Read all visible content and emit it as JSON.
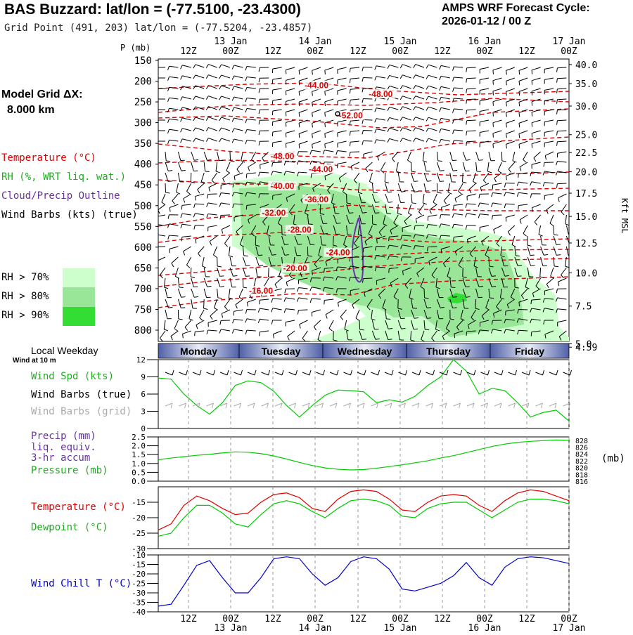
{
  "header": {
    "title": "BAS Buzzard:  lat/lon = (-77.5100, -23.4300)",
    "subtitle": "Grid Point (491, 203) lat/lon = (-77.5204, -23.4857)",
    "cycle_line1": "AMPS WRF Forecast Cycle:",
    "cycle_line2": "2026-01-12 / 00  Z"
  },
  "legend": {
    "grid_label": "Model Grid ΔX:",
    "grid_value": "8.000 km",
    "temperature": "Temperature (°C)",
    "rh": "RH (%, WRT liq. wat.)",
    "cloud": "Cloud/Precip Outline",
    "wind_barbs": "Wind Barbs (kts) (true)",
    "rh70": "RH > 70%",
    "rh80": "RH > 80%",
    "rh90": "RH > 90%",
    "local_weekday": "Local Weekday",
    "wind_10m": "Wind at 10 m",
    "wind_spd": "Wind Spd (kts)",
    "wind_barbs_true": "Wind Barbs (true)",
    "wind_barbs_grid": "Wind Barbs (grid)",
    "precip1": "Precip (mm)",
    "precip2": "liq. equiv.",
    "precip3": "3-hr accum",
    "pressure": "Pressure (mb)",
    "temp2": "Temperature (°C)",
    "dewpoint": "Dewpoint (°C)",
    "windchill": "Wind Chill T (°C)",
    "p_axis": "P (mb)",
    "kft": "Kft MSL",
    "mb_unit": "(mb)"
  },
  "colors": {
    "temp": "#e00000",
    "rh70": "#ccffcc",
    "rh80": "#99e699",
    "rh90": "#33dd33",
    "cloud": "#6633aa",
    "wind": "#00cc00",
    "grid_barb": "#aaaaaa",
    "windchill": "#0000cc",
    "daybar": "#5060a8"
  },
  "time_axis": {
    "hours": [
      "12Z",
      "00Z",
      "12Z",
      "00Z",
      "12Z",
      "00Z",
      "12Z",
      "00Z",
      "12Z",
      "00Z"
    ],
    "dates": [
      "13 Jan",
      "14 Jan",
      "15 Jan",
      "16 Jan",
      "17 Jan"
    ],
    "weekdays": [
      "Monday",
      "Tuesday",
      "Wednesday",
      "Thursday",
      "Friday"
    ]
  },
  "chart_data": [
    {
      "type": "time-height",
      "name": "upper-air cross section",
      "ylabel": "P (mb)",
      "y2label": "Kft MSL",
      "pressure_ticks": [
        "150",
        "200",
        "250",
        "300",
        "350",
        "400",
        "450",
        "500",
        "550",
        "600",
        "650",
        "700",
        "750",
        "800"
      ],
      "kft_ticks": [
        {
          "p": 160,
          "label": "40.0"
        },
        {
          "p": 206,
          "label": "35.0"
        },
        {
          "p": 260,
          "label": "30.0"
        },
        {
          "p": 329,
          "label": "25.0"
        },
        {
          "p": 372,
          "label": "22.5"
        },
        {
          "p": 418,
          "label": "20.0"
        },
        {
          "p": 470,
          "label": "17.5"
        },
        {
          "p": 526,
          "label": "15.0"
        },
        {
          "p": 590,
          "label": "12.5"
        },
        {
          "p": 662,
          "label": "10.0"
        },
        {
          "p": 742,
          "label": "7.5"
        },
        {
          "p": 833,
          "label": "5.0"
        },
        {
          "p": 841,
          "label": "4.59"
        }
      ],
      "temp_labels": [
        {
          "t": 37,
          "p": 217,
          "label": "-44.00"
        },
        {
          "t": 52,
          "p": 238,
          "label": "-48.00"
        },
        {
          "t": 45,
          "p": 290,
          "label": "-52.00"
        },
        {
          "t": 29,
          "p": 388,
          "label": "-48.00"
        },
        {
          "t": 38,
          "p": 419,
          "label": "-44.00"
        },
        {
          "t": 29,
          "p": 460,
          "label": "-40.00"
        },
        {
          "t": 37,
          "p": 492,
          "label": "-36.00"
        },
        {
          "t": 27,
          "p": 524,
          "label": "-32.00"
        },
        {
          "t": 33,
          "p": 565,
          "label": "-28.00"
        },
        {
          "t": 42,
          "p": 620,
          "label": "-24.00"
        },
        {
          "t": 32,
          "p": 658,
          "label": "-20.00"
        },
        {
          "t": 24,
          "p": 712,
          "label": "-16.00"
        }
      ]
    },
    {
      "type": "line",
      "name": "wind speed 10 m",
      "ylabel": "Wind Spd (kts)",
      "ylim": [
        0,
        12
      ],
      "yticks": [
        "0",
        "3",
        "6",
        "9",
        "12"
      ],
      "x": [
        0,
        3,
        6,
        9,
        12,
        15,
        18,
        21,
        24,
        27,
        30,
        33,
        36,
        39,
        42,
        45,
        48,
        51,
        54,
        57,
        60,
        63,
        66,
        69,
        72,
        75,
        78,
        81,
        84,
        87,
        90,
        93,
        96
      ],
      "values": [
        8.8,
        8.6,
        6,
        4,
        2.5,
        4.5,
        7.5,
        8.3,
        8,
        6.5,
        4,
        2,
        4,
        5.8,
        6.7,
        6.6,
        6.4,
        4.5,
        5,
        4.6,
        5.6,
        7.5,
        9,
        12,
        10,
        6,
        7,
        6.6,
        4.5,
        2,
        2.8,
        3.2,
        1.3
      ]
    },
    {
      "type": "line",
      "name": "pressure",
      "ylabel": "Pressure (mb)",
      "ylim": [
        816,
        829
      ],
      "yticks": [
        "816",
        "818",
        "820",
        "822",
        "824",
        "826",
        "828"
      ],
      "x": [
        0,
        3,
        6,
        9,
        12,
        15,
        18,
        21,
        24,
        27,
        30,
        33,
        36,
        39,
        42,
        45,
        48,
        51,
        54,
        57,
        60,
        63,
        66,
        69,
        72,
        75,
        78,
        81,
        84,
        87,
        90,
        93,
        96
      ],
      "values": [
        822.3,
        822.8,
        823.2,
        823.6,
        823.9,
        824.3,
        824.6,
        824.5,
        824.1,
        823.4,
        822.5,
        821.5,
        820.6,
        819.9,
        819.5,
        819.3,
        819.4,
        819.8,
        820.3,
        820.8,
        821.4,
        822,
        822.8,
        823.5,
        824.4,
        825.3,
        826.2,
        826.9,
        827.4,
        827.7,
        827.9,
        828.1,
        828
      ],
      "precip_ylabel": "Precip (mm)",
      "precip_ylim": [
        0,
        2.5
      ],
      "precip_yticks": [
        "0.0",
        "0.5",
        "1.0",
        "1.5",
        "2.0",
        "2.5"
      ],
      "precip_values": []
    },
    {
      "type": "line",
      "name": "temperature and dewpoint",
      "ylabel": "Temperature (°C)",
      "ylim": [
        -30,
        -10
      ],
      "yticks": [
        "-30",
        "-25",
        "-20",
        "-15"
      ],
      "x": [
        0,
        3,
        6,
        9,
        12,
        15,
        18,
        21,
        24,
        27,
        30,
        33,
        36,
        39,
        42,
        45,
        48,
        51,
        54,
        57,
        60,
        63,
        66,
        69,
        72,
        75,
        78,
        81,
        84,
        87,
        90,
        93,
        96
      ],
      "series": [
        {
          "name": "Temperature",
          "values": [
            -24,
            -22,
            -16,
            -13,
            -14.5,
            -17,
            -19,
            -18.5,
            -15,
            -12.5,
            -12,
            -13.5,
            -17,
            -18,
            -14,
            -11.5,
            -11,
            -11.5,
            -14,
            -17.5,
            -18,
            -15,
            -13,
            -12.5,
            -13,
            -16,
            -18,
            -14.5,
            -12,
            -11,
            -11.5,
            -13,
            -14.5
          ]
        },
        {
          "name": "Dewpoint",
          "values": [
            -26,
            -25,
            -20,
            -16,
            -16,
            -18.5,
            -22,
            -23,
            -19,
            -15.5,
            -14.5,
            -15.5,
            -18,
            -20,
            -17,
            -14.5,
            -14,
            -14.5,
            -16,
            -19.5,
            -20,
            -17,
            -15.5,
            -15,
            -15,
            -17.5,
            -20,
            -17.5,
            -15,
            -14,
            -14,
            -14.5,
            -15.5
          ]
        }
      ]
    },
    {
      "type": "line",
      "name": "wind chill",
      "ylabel": "Wind Chill T (°C)",
      "ylim": [
        -40,
        -10
      ],
      "yticks": [
        "-40",
        "-35",
        "-30",
        "-25",
        "-20",
        "-15",
        "-10"
      ],
      "x": [
        0,
        3,
        6,
        9,
        12,
        15,
        18,
        21,
        24,
        27,
        30,
        33,
        36,
        39,
        42,
        45,
        48,
        51,
        54,
        57,
        60,
        63,
        66,
        69,
        72,
        75,
        78,
        81,
        84,
        87,
        90,
        93,
        96
      ],
      "values": [
        -37,
        -36,
        -26,
        -15.5,
        -13,
        -22,
        -30,
        -30,
        -22,
        -12,
        -11,
        -12,
        -20,
        -26,
        -22,
        -13.5,
        -11,
        -12,
        -17.5,
        -28,
        -29,
        -27,
        -25,
        -21,
        -14,
        -22,
        -26,
        -16.5,
        -12,
        -11,
        -11.5,
        -13,
        -14.5
      ]
    }
  ]
}
